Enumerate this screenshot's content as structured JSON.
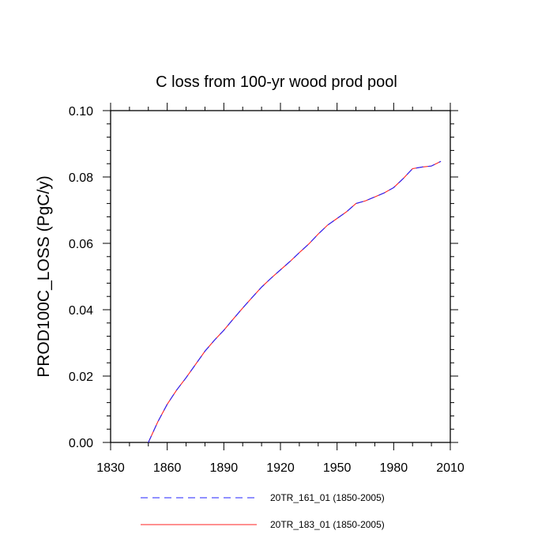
{
  "chart_data": {
    "type": "line",
    "title": "C loss from 100-yr wood prod pool",
    "xlabel": "",
    "ylabel": "PROD100C_LOSS  (PgC/y)",
    "xlim": [
      1830,
      2010
    ],
    "ylim": [
      0.0,
      0.1
    ],
    "x_ticks": [
      1830,
      1860,
      1890,
      1920,
      1950,
      1980,
      2010
    ],
    "x_tick_labels": [
      "1830",
      "1860",
      "1890",
      "1920",
      "1950",
      "1980",
      "2010"
    ],
    "y_ticks": [
      0.0,
      0.02,
      0.04,
      0.06,
      0.08,
      0.1
    ],
    "y_tick_labels": [
      "0.00",
      "0.02",
      "0.04",
      "0.06",
      "0.08",
      "0.10"
    ],
    "grid": false,
    "legend_position": "bottom",
    "x": [
      1850,
      1855,
      1860,
      1865,
      1870,
      1875,
      1880,
      1885,
      1890,
      1895,
      1900,
      1905,
      1910,
      1915,
      1920,
      1925,
      1930,
      1935,
      1940,
      1945,
      1950,
      1955,
      1960,
      1965,
      1970,
      1975,
      1980,
      1985,
      1990,
      1995,
      2000,
      2005
    ],
    "series": [
      {
        "name": "20TR_161_01 (1850-2005)",
        "color": "#2222ff",
        "dash": "dashed",
        "values": [
          0.0,
          0.0062,
          0.0115,
          0.0158,
          0.0195,
          0.0235,
          0.0275,
          0.0308,
          0.0338,
          0.0372,
          0.0405,
          0.0437,
          0.0468,
          0.0495,
          0.052,
          0.0545,
          0.0572,
          0.0598,
          0.0628,
          0.0655,
          0.0675,
          0.0695,
          0.072,
          0.0728,
          0.074,
          0.0752,
          0.0768,
          0.0795,
          0.0825,
          0.083,
          0.0833,
          0.0847
        ]
      },
      {
        "name": "20TR_183_01 (1850-2005)",
        "color": "#ff2222",
        "dash": "solid",
        "values": [
          0.0,
          0.0062,
          0.0115,
          0.0158,
          0.0195,
          0.0235,
          0.0275,
          0.0308,
          0.0338,
          0.0372,
          0.0405,
          0.0437,
          0.0468,
          0.0495,
          0.052,
          0.0545,
          0.0572,
          0.0598,
          0.0628,
          0.0655,
          0.0675,
          0.0695,
          0.072,
          0.0728,
          0.074,
          0.0752,
          0.0768,
          0.0795,
          0.0825,
          0.083,
          0.0833,
          0.0847
        ]
      }
    ]
  }
}
